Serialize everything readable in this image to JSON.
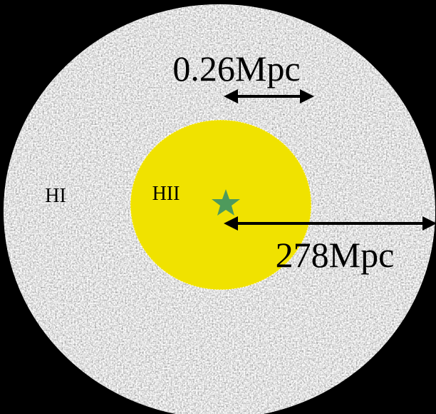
{
  "labels": {
    "outer_region": "HI",
    "inner_region": "HII",
    "small_scale": "0.26Mpc",
    "large_scale": "278Mpc"
  }
}
